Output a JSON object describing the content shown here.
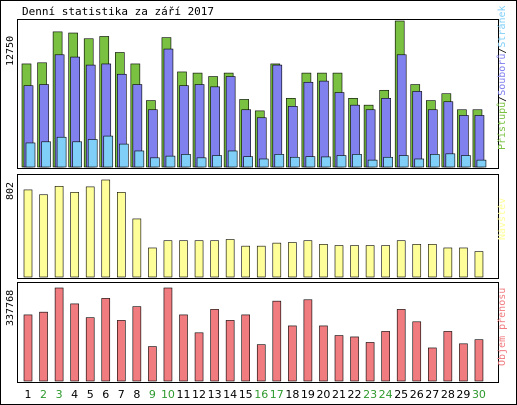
{
  "title": "Denní statistika za září 2017",
  "colors": {
    "frame": "#000000",
    "hits_fill": "#7ac142",
    "files_fill": "#8080ee",
    "visits_fill": "#80cff8",
    "visitors_fill": "#ffff99",
    "kbytes_fill": "#f07c80",
    "weekday_label": "#000000",
    "weekend_label": "#2e9a2e"
  },
  "chart_data": [
    {
      "type": "bar",
      "name": "hits-files-visits",
      "ymax_label": "12750",
      "ylim": [
        0,
        12750
      ],
      "right_label_parts": [
        {
          "text": "Přístupů",
          "color": "#7ac142"
        },
        {
          "text": "/",
          "color": "#000000"
        },
        {
          "text": "Souborů",
          "color": "#8080ee"
        },
        {
          "text": "/",
          "color": "#000000"
        },
        {
          "text": "Stránek",
          "color": "#80cff8"
        }
      ],
      "x": [
        1,
        2,
        3,
        4,
        5,
        6,
        7,
        8,
        9,
        10,
        11,
        12,
        13,
        14,
        15,
        16,
        17,
        18,
        19,
        20,
        21,
        22,
        23,
        24,
        25,
        26,
        27,
        28,
        29,
        30
      ],
      "series": [
        {
          "name": "Přístupů",
          "values": [
            9000,
            9100,
            11800,
            11700,
            11200,
            11400,
            10000,
            9000,
            5800,
            11300,
            8300,
            8200,
            7900,
            8200,
            5900,
            4900,
            9000,
            6000,
            8200,
            8200,
            8200,
            6000,
            5400,
            6700,
            12750,
            7200,
            5800,
            6400,
            5000,
            5000
          ]
        },
        {
          "name": "Souborů",
          "values": [
            7100,
            7200,
            9800,
            9600,
            8900,
            9000,
            8100,
            7200,
            5000,
            10300,
            7100,
            7200,
            7000,
            7900,
            5000,
            4300,
            8900,
            5300,
            7400,
            7500,
            6500,
            5400,
            5000,
            6000,
            9800,
            6600,
            5000,
            5700,
            4500,
            4500
          ]
        },
        {
          "name": "Stránek",
          "values": [
            2100,
            2200,
            2600,
            2200,
            2400,
            2700,
            2000,
            1400,
            800,
            950,
            1100,
            800,
            1000,
            1400,
            900,
            700,
            1100,
            850,
            900,
            880,
            1000,
            1100,
            600,
            850,
            1000,
            700,
            1100,
            1150,
            1000,
            600
          ]
        }
      ]
    },
    {
      "type": "bar",
      "name": "visitors",
      "ymax_label": "802",
      "ylim": [
        0,
        802
      ],
      "right_label_parts": [
        {
          "text": "Návštěv",
          "color": "#ffff99"
        }
      ],
      "x": [
        1,
        2,
        3,
        4,
        5,
        6,
        7,
        8,
        9,
        10,
        11,
        12,
        13,
        14,
        15,
        16,
        17,
        18,
        19,
        20,
        21,
        22,
        23,
        24,
        25,
        26,
        27,
        28,
        29,
        30
      ],
      "series": [
        {
          "name": "Návštěv",
          "values": [
            720,
            680,
            750,
            700,
            745,
            802,
            700,
            480,
            240,
            300,
            300,
            300,
            300,
            310,
            255,
            255,
            280,
            285,
            300,
            270,
            260,
            260,
            260,
            260,
            300,
            270,
            270,
            240,
            240,
            210
          ]
        }
      ]
    },
    {
      "type": "bar",
      "name": "kbytes",
      "ymax_label": "337768",
      "ylim": [
        0,
        337768
      ],
      "right_label_parts": [
        {
          "text": "Objem přenosu",
          "color": "#f07c80"
        }
      ],
      "x": [
        1,
        2,
        3,
        4,
        5,
        6,
        7,
        8,
        9,
        10,
        11,
        12,
        13,
        14,
        15,
        16,
        17,
        18,
        19,
        20,
        21,
        22,
        23,
        24,
        25,
        26,
        27,
        28,
        29,
        30
      ],
      "series": [
        {
          "name": "Objem přenosu",
          "values": [
            240000,
            250000,
            337768,
            280000,
            230000,
            300000,
            220000,
            270000,
            125000,
            337768,
            240000,
            175000,
            260000,
            220000,
            240000,
            132000,
            290000,
            200000,
            295000,
            200000,
            165000,
            160000,
            140000,
            180000,
            260000,
            215000,
            120000,
            180000,
            135000,
            150000
          ]
        }
      ]
    }
  ],
  "x_labels": [
    "1",
    "2",
    "3",
    "4",
    "5",
    "6",
    "7",
    "8",
    "9",
    "10",
    "11",
    "12",
    "13",
    "14",
    "15",
    "16",
    "17",
    "18",
    "19",
    "20",
    "21",
    "22",
    "23",
    "24",
    "25",
    "26",
    "27",
    "28",
    "29",
    "30"
  ],
  "weekend_days": [
    2,
    3,
    9,
    10,
    16,
    17,
    23,
    24,
    30
  ]
}
